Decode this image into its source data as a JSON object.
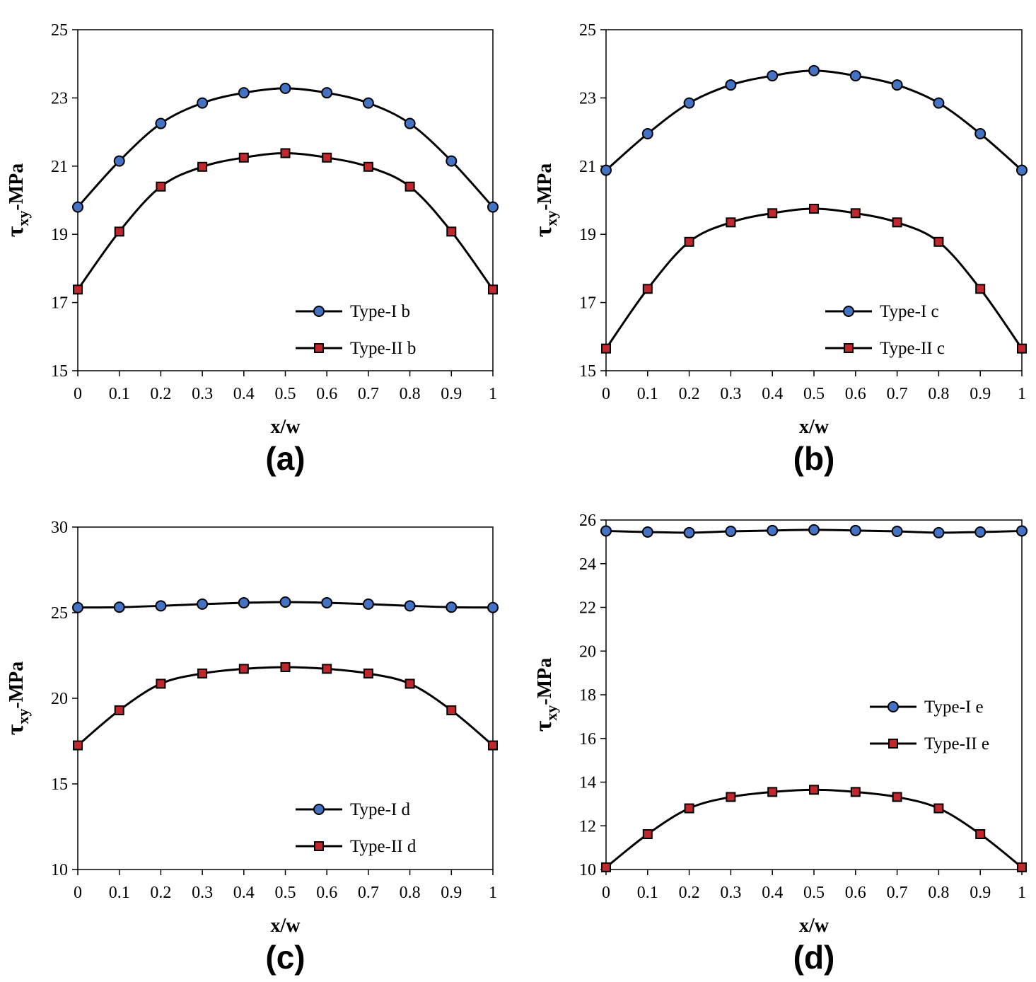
{
  "colors": {
    "type1_marker": "#4472c4",
    "type2_marker": "#c0282d",
    "line": "#000000"
  },
  "chart_data": [
    {
      "type": "line",
      "panel_label": "(a)",
      "xlabel": "x/w",
      "ylabel_main": "τ",
      "ylabel_sub": "xy",
      "ylabel_rest": "-MPa",
      "xlim": [
        0,
        1
      ],
      "ylim": [
        15,
        25
      ],
      "xticks": [
        "0",
        "0.1",
        "0.2",
        "0.3",
        "0.4",
        "0.5",
        "0.6",
        "0.7",
        "0.8",
        "0.9",
        "1"
      ],
      "yticks": [
        "15",
        "17",
        "19",
        "21",
        "23",
        "25"
      ],
      "legend_position": "bottom-right",
      "x": [
        0,
        0.1,
        0.2,
        0.3,
        0.4,
        0.5,
        0.6,
        0.7,
        0.8,
        0.9,
        1
      ],
      "series": [
        {
          "name": "Type-I b",
          "marker": "circle",
          "values": [
            19.8,
            21.15,
            22.25,
            22.85,
            23.15,
            23.28,
            23.15,
            22.85,
            22.25,
            21.15,
            19.8
          ]
        },
        {
          "name": "Type-II b",
          "marker": "square",
          "values": [
            17.38,
            19.08,
            20.4,
            20.98,
            21.25,
            21.38,
            21.25,
            20.98,
            20.4,
            19.08,
            17.38
          ]
        }
      ]
    },
    {
      "type": "line",
      "panel_label": "(b)",
      "xlabel": "x/w",
      "ylabel_main": "τ",
      "ylabel_sub": "xy",
      "ylabel_rest": "-MPa",
      "xlim": [
        0,
        1
      ],
      "ylim": [
        15,
        25
      ],
      "xticks": [
        "0",
        "0.1",
        "0.2",
        "0.3",
        "0.4",
        "0.5",
        "0.6",
        "0.7",
        "0.8",
        "0.9",
        "1"
      ],
      "yticks": [
        "15",
        "17",
        "19",
        "21",
        "23",
        "25"
      ],
      "legend_position": "bottom-right",
      "x": [
        0,
        0.1,
        0.2,
        0.3,
        0.4,
        0.5,
        0.6,
        0.7,
        0.8,
        0.9,
        1
      ],
      "series": [
        {
          "name": "Type-I c",
          "marker": "circle",
          "values": [
            20.88,
            21.95,
            22.85,
            23.38,
            23.65,
            23.8,
            23.65,
            23.38,
            22.85,
            21.95,
            20.88
          ]
        },
        {
          "name": "Type-II c",
          "marker": "square",
          "values": [
            15.65,
            17.4,
            18.78,
            19.35,
            19.62,
            19.75,
            19.62,
            19.35,
            18.78,
            17.4,
            15.65
          ]
        }
      ]
    },
    {
      "type": "line",
      "panel_label": "(c)",
      "xlabel": "x/w",
      "ylabel_main": "τ",
      "ylabel_sub": "xy",
      "ylabel_rest": "-MPa",
      "xlim": [
        0,
        1
      ],
      "ylim": [
        10,
        30
      ],
      "xticks": [
        "0",
        "0.1",
        "0.2",
        "0.3",
        "0.4",
        "0.5",
        "0.6",
        "0.7",
        "0.8",
        "0.9",
        "1"
      ],
      "yticks": [
        "10",
        "15",
        "20",
        "25",
        "30"
      ],
      "legend_position": "bottom-right",
      "x": [
        0,
        0.1,
        0.2,
        0.3,
        0.4,
        0.5,
        0.6,
        0.7,
        0.8,
        0.9,
        1
      ],
      "series": [
        {
          "name": "Type-I d",
          "marker": "circle",
          "values": [
            25.3,
            25.32,
            25.4,
            25.5,
            25.58,
            25.62,
            25.58,
            25.5,
            25.4,
            25.32,
            25.3
          ]
        },
        {
          "name": "Type-II d",
          "marker": "square",
          "values": [
            17.25,
            19.3,
            20.85,
            21.45,
            21.72,
            21.82,
            21.72,
            21.45,
            20.85,
            19.3,
            17.25
          ]
        }
      ]
    },
    {
      "type": "line",
      "panel_label": "(d)",
      "xlabel": "x/w",
      "ylabel_main": "τ",
      "ylabel_sub": "xy",
      "ylabel_rest": "-MPa",
      "xlim": [
        0,
        1
      ],
      "ylim": [
        10,
        26
      ],
      "xticks": [
        "0",
        "0.1",
        "0.2",
        "0.3",
        "0.4",
        "0.5",
        "0.6",
        "0.7",
        "0.8",
        "0.9",
        "1"
      ],
      "yticks": [
        "10",
        "12",
        "14",
        "16",
        "18",
        "20",
        "22",
        "24",
        "26"
      ],
      "legend_position": "middle-right",
      "x": [
        0,
        0.1,
        0.2,
        0.3,
        0.4,
        0.5,
        0.6,
        0.7,
        0.8,
        0.9,
        1
      ],
      "series": [
        {
          "name": "Type-I e",
          "marker": "circle",
          "values": [
            25.5,
            25.45,
            25.42,
            25.48,
            25.52,
            25.55,
            25.52,
            25.48,
            25.42,
            25.45,
            25.5
          ]
        },
        {
          "name": "Type-II e",
          "marker": "square",
          "values": [
            10.1,
            11.62,
            12.8,
            13.32,
            13.55,
            13.65,
            13.55,
            13.32,
            12.8,
            11.62,
            10.1
          ]
        }
      ]
    }
  ]
}
